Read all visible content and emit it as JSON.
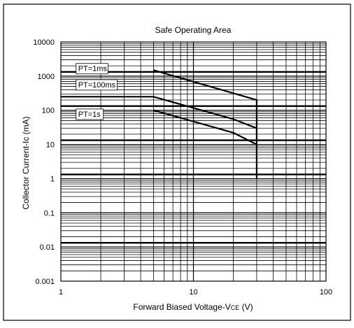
{
  "chart_data": {
    "type": "line",
    "title": "Safe Operating Area",
    "xlabel_main": "Forward Biased Voltage-V",
    "xlabel_sub": "CE",
    "xlabel_unit": " (V)",
    "ylabel": "Collector Current-Ic (mA)",
    "x_scale": "log",
    "y_scale": "log",
    "xlim": [
      1,
      100
    ],
    "ylim": [
      0.001,
      10000
    ],
    "grid": true,
    "x_tick_labels": [
      {
        "value": 1,
        "label": "1"
      },
      {
        "value": 10,
        "label": "10"
      },
      {
        "value": 100,
        "label": "100"
      }
    ],
    "y_tick_labels": [
      {
        "value": 10000,
        "label": "10000"
      },
      {
        "value": 1000,
        "label": "1000"
      },
      {
        "value": 100,
        "label": "100"
      },
      {
        "value": 10,
        "label": "10"
      },
      {
        "value": 1,
        "label": "1"
      },
      {
        "value": 0.1,
        "label": "0.1"
      },
      {
        "value": 0.01,
        "label": "0.01"
      },
      {
        "value": 0.001,
        "label": "0.001"
      }
    ],
    "series": [
      {
        "name": "PT=1ms",
        "label_at": {
          "x": 1.35,
          "y": 1400
        },
        "points": [
          [
            5,
            1500
          ],
          [
            30,
            200
          ],
          [
            30,
            1
          ]
        ]
      },
      {
        "name": "PT=100ms",
        "label_at": {
          "x": 1.35,
          "y": 470
        },
        "points": [
          [
            1,
            250
          ],
          [
            5,
            250
          ],
          [
            20,
            55
          ],
          [
            30,
            30
          ]
        ]
      },
      {
        "name": "PT=1s",
        "label_at": {
          "x": 1.35,
          "y": 65
        },
        "points": [
          [
            5,
            100
          ],
          [
            20,
            22
          ],
          [
            30,
            10
          ]
        ]
      }
    ]
  }
}
